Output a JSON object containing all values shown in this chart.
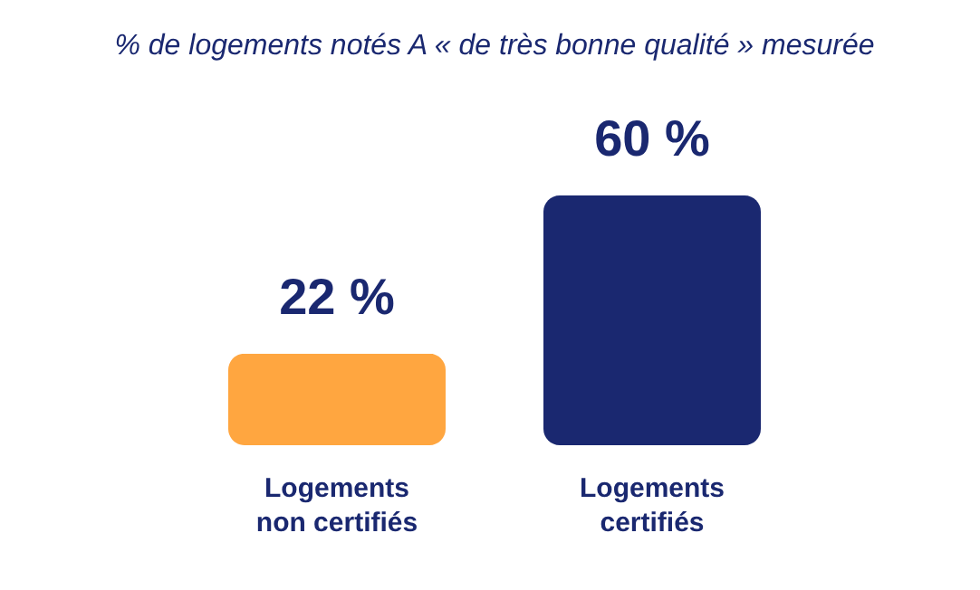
{
  "chart_data": {
    "type": "bar",
    "title": "% de logements notés A « de très bonne qualité » mesurée",
    "categories": [
      "Logements non certifiés",
      "Logements certifiés"
    ],
    "values": [
      22,
      60
    ],
    "colors": [
      "#ffa640",
      "#1a2870"
    ],
    "value_labels": [
      "22 %",
      "60 %"
    ],
    "grid": false
  }
}
